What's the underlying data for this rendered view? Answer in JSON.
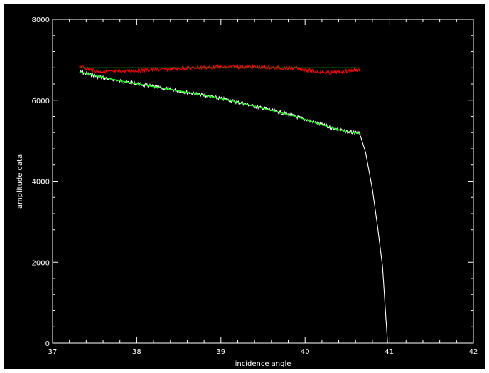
{
  "chart_data": {
    "type": "line",
    "xlabel": "incidence angle",
    "ylabel": "amplitude data",
    "xlim": [
      37,
      42
    ],
    "ylim": [
      0,
      8000
    ],
    "x_ticks": [
      "37",
      "38",
      "39",
      "40",
      "41",
      "42"
    ],
    "y_ticks": [
      "0",
      "2000",
      "4000",
      "6000",
      "8000"
    ],
    "background": "#000000",
    "axis_color": "#ffffff",
    "grid": false,
    "series": [
      {
        "color": "#ffffff",
        "style": "noisy",
        "x": [
          37.32,
          37.5,
          37.7,
          37.9,
          38.1,
          38.3,
          38.5,
          38.7,
          38.9,
          39.1,
          39.3,
          39.5,
          39.7,
          39.9,
          40.1,
          40.3,
          40.5,
          40.65,
          40.72,
          40.8,
          40.86,
          40.92,
          40.98
        ],
        "y": [
          6700,
          6600,
          6510,
          6440,
          6370,
          6300,
          6230,
          6160,
          6080,
          6000,
          5900,
          5800,
          5700,
          5590,
          5460,
          5330,
          5220,
          5180,
          4700,
          3800,
          2900,
          1900,
          0
        ]
      },
      {
        "color": "#00ff00",
        "style": "line",
        "x": [
          37.32,
          37.5,
          37.7,
          37.9,
          38.1,
          38.3,
          38.5,
          38.7,
          38.9,
          39.1,
          39.3,
          39.5,
          39.7,
          39.9,
          40.1,
          40.3,
          40.5,
          40.65
        ],
        "y": [
          6700,
          6610,
          6520,
          6440,
          6370,
          6300,
          6230,
          6160,
          6080,
          6000,
          5900,
          5800,
          5700,
          5590,
          5460,
          5330,
          5220,
          5180
        ]
      },
      {
        "color": "#ff0000",
        "style": "noisy",
        "x": [
          37.32,
          37.5,
          37.7,
          37.9,
          38.1,
          38.3,
          38.5,
          38.7,
          38.9,
          39.1,
          39.3,
          39.5,
          39.7,
          39.9,
          40.1,
          40.3,
          40.5,
          40.65
        ],
        "y": [
          6850,
          6720,
          6700,
          6720,
          6740,
          6760,
          6780,
          6800,
          6810,
          6820,
          6820,
          6810,
          6800,
          6780,
          6720,
          6670,
          6720,
          6760
        ]
      },
      {
        "color": "#008800",
        "style": "line",
        "x": [
          37.32,
          40.65
        ],
        "y": [
          6800,
          6800
        ]
      }
    ]
  }
}
